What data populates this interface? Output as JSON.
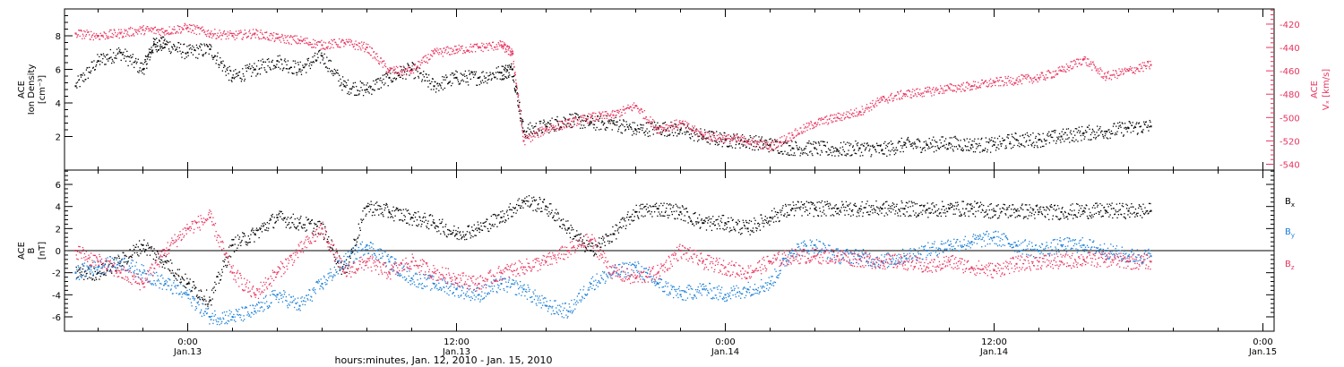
{
  "chart_data": [
    {
      "type": "scatter",
      "panel": "top",
      "ylabel_lines": [
        "ACE",
        "Ion Density"
      ],
      "yunit": "[cm⁻³]",
      "y2label": "ACE",
      "y2label_var": "Vₓ",
      "y2unit": "[km/s]",
      "ylim": [
        0,
        9.6
      ],
      "y_ticks": [
        "2",
        "4",
        "6",
        "8"
      ],
      "y2lim": [
        -545,
        -407
      ],
      "y2_ticks": [
        "-420",
        "-440",
        "-460",
        "-480",
        "-500",
        "-520",
        "-540"
      ],
      "series": [
        {
          "color": "#000000",
          "x": [
            -5,
            -4,
            -3,
            -2,
            -1.5,
            -1,
            0,
            1,
            2,
            3,
            4,
            5,
            6,
            7,
            8,
            9,
            10,
            11,
            12,
            13,
            14,
            14.5,
            15,
            16,
            17,
            18,
            19,
            20,
            21,
            22,
            23,
            24,
            25,
            26,
            27,
            28,
            29,
            30,
            31,
            32,
            33,
            34,
            35,
            36,
            37,
            38,
            39,
            40,
            41,
            42,
            43
          ],
          "y": [
            5.0,
            6.5,
            7.0,
            6.0,
            7.5,
            7.5,
            7.0,
            7.2,
            5.5,
            6.0,
            6.5,
            6.0,
            6.8,
            5.0,
            4.8,
            5.5,
            6.0,
            5.0,
            5.5,
            5.5,
            5.8,
            6.0,
            2.3,
            2.6,
            3.0,
            2.8,
            2.8,
            2.4,
            2.5,
            2.4,
            2.0,
            1.8,
            1.7,
            1.5,
            1.3,
            1.3,
            1.2,
            1.3,
            1.2,
            1.5,
            1.5,
            1.6,
            1.5,
            1.5,
            1.8,
            1.8,
            2.0,
            2.2,
            2.3,
            2.5,
            2.6
          ]
        },
        {
          "color": "#e8345f",
          "x": [
            -5,
            -4,
            -3,
            -2,
            -1,
            0,
            1,
            2,
            3,
            4,
            5,
            6,
            7,
            8,
            9,
            10,
            11,
            12,
            13,
            14,
            14.5,
            15,
            16,
            17,
            18,
            19,
            20,
            21,
            22,
            23,
            24,
            25,
            26,
            27,
            28,
            29,
            30,
            31,
            32,
            33,
            34,
            35,
            36,
            37,
            38,
            39,
            40,
            41,
            42,
            43
          ],
          "y": [
            -428,
            -430,
            -428,
            -425,
            -426,
            -423,
            -428,
            -430,
            -428,
            -432,
            -434,
            -438,
            -436,
            -440,
            -460,
            -460,
            -445,
            -442,
            -440,
            -438,
            -445,
            -520,
            -510,
            -505,
            -500,
            -498,
            -490,
            -510,
            -505,
            -515,
            -518,
            -520,
            -525,
            -515,
            -505,
            -500,
            -495,
            -485,
            -480,
            -478,
            -475,
            -473,
            -470,
            -468,
            -466,
            -460,
            -450,
            -465,
            -460,
            -455
          ]
        }
      ]
    },
    {
      "type": "scatter",
      "panel": "bottom",
      "ylabel_lines": [
        "ACE",
        "B"
      ],
      "yunit": "[nT]",
      "ylim": [
        -7.3,
        7.3
      ],
      "y_ticks": [
        "-6",
        "-4",
        "-2",
        "0",
        "2",
        "4",
        "6"
      ],
      "series": [
        {
          "name": "B",
          "sub": "x",
          "color": "#000000",
          "x": [
            -5,
            -4,
            -3,
            -2,
            -1,
            0,
            1,
            2,
            3,
            4,
            5,
            6,
            7,
            8,
            9,
            10,
            11,
            12,
            13,
            14,
            15,
            16,
            17,
            18,
            19,
            20,
            21,
            22,
            23,
            24,
            25,
            26,
            27,
            28,
            29,
            30,
            31,
            32,
            33,
            34,
            35,
            36,
            37,
            38,
            39,
            40,
            41,
            42,
            43
          ],
          "y": [
            -2.0,
            -2.0,
            -1.0,
            0.5,
            -1.0,
            -3.0,
            -4.5,
            0.5,
            1.5,
            3.0,
            2.5,
            2.0,
            -2.0,
            4.0,
            3.5,
            3.0,
            2.5,
            1.5,
            2.0,
            3.0,
            4.5,
            4.0,
            2.0,
            0.0,
            1.5,
            3.5,
            3.8,
            3.5,
            2.5,
            2.5,
            2.0,
            3.0,
            3.8,
            3.8,
            3.8,
            3.8,
            3.8,
            3.8,
            3.7,
            3.8,
            3.8,
            3.6,
            3.6,
            3.5,
            3.5,
            3.6,
            3.6,
            3.6,
            3.6
          ]
        },
        {
          "name": "B",
          "sub": "y",
          "color": "#1a7fd6",
          "x": [
            -5,
            -4,
            -3,
            -2,
            -1,
            0,
            1,
            2,
            3,
            4,
            5,
            6,
            7,
            8,
            9,
            10,
            11,
            12,
            13,
            14,
            15,
            16,
            17,
            18,
            19,
            20,
            21,
            22,
            23,
            24,
            25,
            26,
            27,
            28,
            29,
            30,
            31,
            32,
            33,
            34,
            35,
            36,
            37,
            38,
            39,
            40,
            41,
            42,
            43
          ],
          "y": [
            -2.0,
            -1.5,
            -1.0,
            -2.0,
            -3.0,
            -4.0,
            -6.0,
            -6.0,
            -5.5,
            -4.0,
            -5.0,
            -3.0,
            -1.0,
            0.5,
            -1.0,
            -2.5,
            -3.0,
            -3.5,
            -4.0,
            -3.0,
            -3.5,
            -5.0,
            -5.5,
            -3.0,
            -2.0,
            -1.5,
            -3.0,
            -4.0,
            -3.5,
            -4.0,
            -3.5,
            -3.0,
            0.0,
            0.5,
            -0.5,
            -0.5,
            -1.0,
            -0.5,
            0.0,
            0.5,
            0.8,
            1.2,
            0.5,
            0.0,
            0.5,
            0.5,
            0.0,
            -0.5,
            -0.5
          ]
        },
        {
          "name": "B",
          "sub": "z",
          "color": "#e8345f",
          "x": [
            -5,
            -4,
            -3,
            -2,
            -1,
            0,
            1,
            2,
            3,
            4,
            5,
            6,
            7,
            8,
            9,
            10,
            11,
            12,
            13,
            14,
            15,
            16,
            17,
            18,
            19,
            20,
            21,
            22,
            23,
            24,
            25,
            26,
            27,
            28,
            29,
            30,
            31,
            32,
            33,
            34,
            35,
            36,
            37,
            38,
            39,
            40,
            41,
            42,
            43
          ],
          "y": [
            0.0,
            -1.0,
            -2.0,
            -3.0,
            0.0,
            2.0,
            3.0,
            -2.0,
            -4.0,
            -2.0,
            0.0,
            2.0,
            -2.0,
            -1.0,
            -2.0,
            -1.0,
            -2.0,
            -2.5,
            -3.0,
            -2.0,
            -1.5,
            -1.0,
            0.0,
            1.0,
            -2.0,
            -2.5,
            -2.0,
            0.0,
            -1.0,
            -1.5,
            -2.0,
            -1.0,
            -0.5,
            -0.5,
            -0.5,
            -0.8,
            -1.0,
            -1.0,
            -1.5,
            -1.0,
            -1.5,
            -1.8,
            -1.2,
            -1.0,
            -1.0,
            -0.8,
            -0.8,
            -1.0,
            -1.0
          ]
        }
      ]
    }
  ],
  "x_axis": {
    "tick_labels": [
      {
        "hours": 0,
        "time": "0:00",
        "day": "Jan.13"
      },
      {
        "hours": 12,
        "time": "12:00",
        "day": "Jan.13"
      },
      {
        "hours": 24,
        "time": "0:00",
        "day": "Jan.14"
      },
      {
        "hours": 36,
        "time": "12:00",
        "day": "Jan.14"
      },
      {
        "hours": 48,
        "time": "0:00",
        "day": "Jan.15"
      }
    ],
    "xlim": [
      -5.5,
      48.5
    ],
    "xlabel": "hours:minutes, Jan. 12, 2010 - Jan. 15, 2010"
  }
}
